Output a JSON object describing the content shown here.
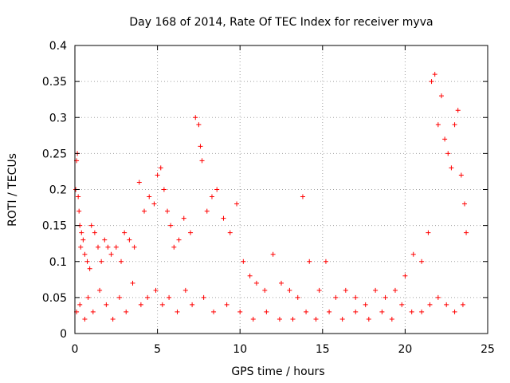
{
  "chart_data": {
    "type": "scatter",
    "title": "Day 168 of 2014, Rate Of TEC Index for receiver myva",
    "xlabel": "GPS time / hours",
    "ylabel": "ROTI / TECUs",
    "xlim": [
      0,
      25
    ],
    "ylim": [
      0,
      0.4
    ],
    "x_ticks": [
      "0",
      "5",
      "10",
      "15",
      "20",
      "25"
    ],
    "y_ticks": [
      "0",
      "0.05",
      "0.1",
      "0.15",
      "0.2",
      "0.25",
      "0.3",
      "0.35",
      "0.4"
    ],
    "grid": true,
    "marker": "plus",
    "color": "#ff0000",
    "series": [
      {
        "x": [
          0.05,
          0.1,
          0.15,
          0.2,
          0.25,
          0.3,
          0.35,
          0.4,
          0.5,
          0.6,
          0.75,
          0.9,
          1.0,
          1.2,
          1.4,
          1.6,
          1.8,
          2.0,
          2.2,
          2.5,
          2.8,
          3.0,
          3.3,
          3.6,
          3.9,
          4.2,
          4.5,
          4.8,
          5.0,
          5.2,
          5.4,
          5.6,
          5.8,
          6.0,
          6.3,
          6.6,
          7.0,
          7.3,
          7.5,
          7.6,
          7.7,
          8.0,
          8.3,
          8.6,
          9.0,
          9.4,
          9.8,
          10.2,
          10.6,
          11.0,
          11.5,
          12.0,
          12.5,
          13.0,
          13.5,
          13.8,
          14.2,
          14.8,
          15.2,
          15.8,
          16.4,
          17.0,
          17.6,
          18.2,
          18.8,
          19.4,
          20.0,
          20.5,
          21.0,
          21.4,
          21.6,
          21.8,
          22.0,
          22.2,
          22.4,
          22.6,
          22.8,
          23.0,
          23.2,
          23.4,
          23.6,
          23.7,
          0.1,
          0.3,
          0.6,
          0.8,
          1.1,
          1.5,
          1.9,
          2.3,
          2.7,
          3.1,
          3.5,
          4.0,
          4.4,
          4.9,
          5.3,
          5.7,
          6.2,
          6.7,
          7.1,
          7.8,
          8.4,
          9.2,
          10.0,
          10.8,
          11.6,
          12.4,
          13.2,
          14.0,
          14.6,
          15.4,
          16.2,
          17.0,
          17.8,
          18.6,
          19.2,
          19.8,
          20.4,
          21.0,
          21.5,
          22.0,
          22.5,
          23.0,
          23.5
        ],
        "y": [
          0.2,
          0.24,
          0.25,
          0.19,
          0.17,
          0.15,
          0.12,
          0.14,
          0.13,
          0.11,
          0.1,
          0.09,
          0.15,
          0.14,
          0.12,
          0.1,
          0.13,
          0.12,
          0.11,
          0.12,
          0.1,
          0.14,
          0.13,
          0.12,
          0.21,
          0.17,
          0.19,
          0.18,
          0.22,
          0.23,
          0.2,
          0.17,
          0.15,
          0.12,
          0.13,
          0.16,
          0.14,
          0.3,
          0.29,
          0.26,
          0.24,
          0.17,
          0.19,
          0.2,
          0.16,
          0.14,
          0.18,
          0.1,
          0.08,
          0.07,
          0.06,
          0.11,
          0.07,
          0.06,
          0.05,
          0.19,
          0.1,
          0.06,
          0.1,
          0.05,
          0.06,
          0.05,
          0.04,
          0.06,
          0.05,
          0.06,
          0.08,
          0.11,
          0.1,
          0.14,
          0.35,
          0.36,
          0.29,
          0.33,
          0.27,
          0.25,
          0.23,
          0.29,
          0.31,
          0.22,
          0.18,
          0.14,
          0.03,
          0.04,
          0.02,
          0.05,
          0.03,
          0.06,
          0.04,
          0.02,
          0.05,
          0.03,
          0.07,
          0.04,
          0.05,
          0.06,
          0.04,
          0.05,
          0.03,
          0.06,
          0.04,
          0.05,
          0.03,
          0.04,
          0.03,
          0.02,
          0.03,
          0.02,
          0.02,
          0.03,
          0.02,
          0.03,
          0.02,
          0.03,
          0.02,
          0.03,
          0.02,
          0.04,
          0.03,
          0.03,
          0.04,
          0.05,
          0.04,
          0.03,
          0.04
        ]
      }
    ]
  }
}
